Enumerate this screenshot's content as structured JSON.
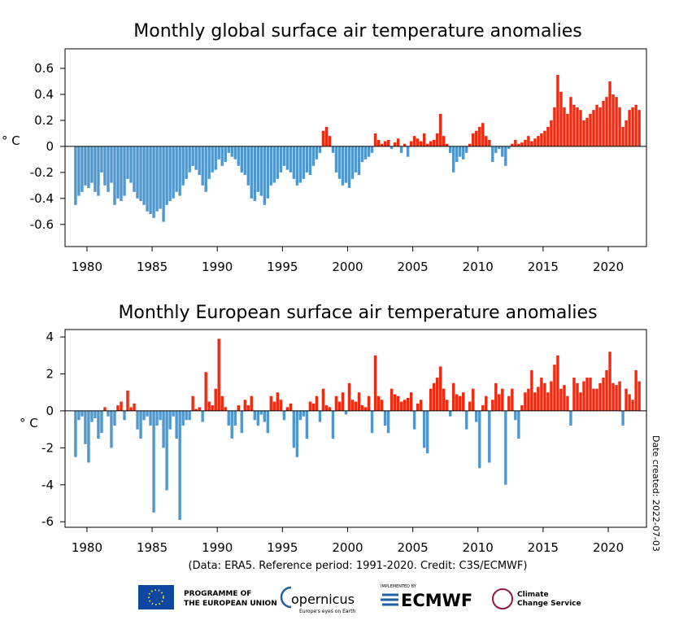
{
  "chart_data": [
    {
      "type": "bar",
      "title": "Monthly global surface air temperature anomalies",
      "ylabel": "° C",
      "positive_color": "#ee2a10",
      "negative_color": "#4f97cc",
      "xlim": [
        1978.32,
        2022.93
      ],
      "xticks": [
        1980,
        1985,
        1990,
        1995,
        2000,
        2005,
        2010,
        2015,
        2020
      ],
      "ylim": [
        -0.77,
        0.75
      ],
      "yticks": [
        0.6,
        0.4,
        0.2,
        0,
        -0.2,
        -0.4,
        -0.6
      ],
      "x": [
        1979.125,
        1979.375,
        1979.625,
        1979.875,
        1980.125,
        1980.375,
        1980.625,
        1980.875,
        1981.125,
        1981.375,
        1981.625,
        1981.875,
        1982.125,
        1982.375,
        1982.625,
        1982.875,
        1983.125,
        1983.375,
        1983.625,
        1983.875,
        1984.125,
        1984.375,
        1984.625,
        1984.875,
        1985.125,
        1985.375,
        1985.625,
        1985.875,
        1986.125,
        1986.375,
        1986.625,
        1986.875,
        1987.125,
        1987.375,
        1987.625,
        1987.875,
        1988.125,
        1988.375,
        1988.625,
        1988.875,
        1989.125,
        1989.375,
        1989.625,
        1989.875,
        1990.125,
        1990.375,
        1990.625,
        1990.875,
        1991.125,
        1991.375,
        1991.625,
        1991.875,
        1992.125,
        1992.375,
        1992.625,
        1992.875,
        1993.125,
        1993.375,
        1993.625,
        1993.875,
        1994.125,
        1994.375,
        1994.625,
        1994.875,
        1995.125,
        1995.375,
        1995.625,
        1995.875,
        1996.125,
        1996.375,
        1996.625,
        1996.875,
        1997.125,
        1997.375,
        1997.625,
        1997.875,
        1998.125,
        1998.375,
        1998.625,
        1998.875,
        1999.125,
        1999.375,
        1999.625,
        1999.875,
        2000.125,
        2000.375,
        2000.625,
        2000.875,
        2001.125,
        2001.375,
        2001.625,
        2001.875,
        2002.125,
        2002.375,
        2002.625,
        2002.875,
        2003.125,
        2003.375,
        2003.625,
        2003.875,
        2004.125,
        2004.375,
        2004.625,
        2004.875,
        2005.125,
        2005.375,
        2005.625,
        2005.875,
        2006.125,
        2006.375,
        2006.625,
        2006.875,
        2007.125,
        2007.375,
        2007.625,
        2007.875,
        2008.125,
        2008.375,
        2008.625,
        2008.875,
        2009.125,
        2009.375,
        2009.625,
        2009.875,
        2010.125,
        2010.375,
        2010.625,
        2010.875,
        2011.125,
        2011.375,
        2011.625,
        2011.875,
        2012.125,
        2012.375,
        2012.625,
        2012.875,
        2013.125,
        2013.375,
        2013.625,
        2013.875,
        2014.125,
        2014.375,
        2014.625,
        2014.875,
        2015.125,
        2015.375,
        2015.625,
        2015.875,
        2016.125,
        2016.375,
        2016.625,
        2016.875,
        2017.125,
        2017.375,
        2017.625,
        2017.875,
        2018.125,
        2018.375,
        2018.625,
        2018.875,
        2019.125,
        2019.375,
        2019.625,
        2019.875,
        2020.125,
        2020.375,
        2020.625,
        2020.875,
        2021.125,
        2021.375,
        2021.625,
        2021.875,
        2022.125,
        2022.375
      ],
      "values": [
        -0.45,
        -0.38,
        -0.35,
        -0.3,
        -0.32,
        -0.28,
        -0.35,
        -0.38,
        -0.2,
        -0.3,
        -0.35,
        -0.28,
        -0.45,
        -0.4,
        -0.42,
        -0.38,
        -0.25,
        -0.28,
        -0.35,
        -0.4,
        -0.42,
        -0.45,
        -0.5,
        -0.52,
        -0.55,
        -0.5,
        -0.48,
        -0.58,
        -0.45,
        -0.42,
        -0.4,
        -0.35,
        -0.38,
        -0.3,
        -0.25,
        -0.2,
        -0.15,
        -0.18,
        -0.22,
        -0.3,
        -0.35,
        -0.25,
        -0.2,
        -0.18,
        -0.1,
        -0.15,
        -0.12,
        -0.05,
        -0.08,
        -0.1,
        -0.15,
        -0.2,
        -0.22,
        -0.3,
        -0.4,
        -0.42,
        -0.35,
        -0.38,
        -0.45,
        -0.4,
        -0.3,
        -0.28,
        -0.25,
        -0.2,
        -0.15,
        -0.18,
        -0.2,
        -0.25,
        -0.3,
        -0.28,
        -0.25,
        -0.2,
        -0.22,
        -0.15,
        -0.1,
        -0.05,
        0.12,
        0.15,
        0.08,
        -0.05,
        -0.2,
        -0.25,
        -0.3,
        -0.28,
        -0.32,
        -0.25,
        -0.2,
        -0.22,
        -0.12,
        -0.1,
        -0.08,
        -0.05,
        0.1,
        0.05,
        0.02,
        0.04,
        0.05,
        -0.02,
        0.03,
        0.06,
        -0.05,
        0.02,
        -0.08,
        0.04,
        0.08,
        0.06,
        0.04,
        0.1,
        0.02,
        0.04,
        0.05,
        0.1,
        0.25,
        0.08,
        0.02,
        -0.05,
        -0.2,
        -0.12,
        -0.08,
        -0.1,
        -0.05,
        0.02,
        0.1,
        0.12,
        0.15,
        0.18,
        0.08,
        0.05,
        -0.12,
        -0.05,
        -0.02,
        -0.08,
        -0.15,
        -0.02,
        0.02,
        0.05,
        0.02,
        0.03,
        0.05,
        0.08,
        0.04,
        0.06,
        0.08,
        0.1,
        0.12,
        0.15,
        0.2,
        0.3,
        0.55,
        0.42,
        0.3,
        0.25,
        0.38,
        0.32,
        0.3,
        0.28,
        0.2,
        0.22,
        0.25,
        0.28,
        0.32,
        0.3,
        0.35,
        0.38,
        0.5,
        0.4,
        0.38,
        0.3,
        0.15,
        0.2,
        0.28,
        0.3,
        0.32,
        0.28
      ]
    },
    {
      "type": "bar",
      "title": "Monthly European surface air temperature anomalies",
      "ylabel": "° C",
      "positive_color": "#ee2a10",
      "negative_color": "#4f97cc",
      "xlim": [
        1978.32,
        2022.93
      ],
      "xticks": [
        1980,
        1985,
        1990,
        1995,
        2000,
        2005,
        2010,
        2015,
        2020
      ],
      "ylim": [
        -6.3,
        4.4
      ],
      "yticks": [
        4,
        2,
        0,
        -2,
        -4,
        -6
      ],
      "x": [
        1979.125,
        1979.375,
        1979.625,
        1979.875,
        1980.125,
        1980.375,
        1980.625,
        1980.875,
        1981.125,
        1981.375,
        1981.625,
        1981.875,
        1982.125,
        1982.375,
        1982.625,
        1982.875,
        1983.125,
        1983.375,
        1983.625,
        1983.875,
        1984.125,
        1984.375,
        1984.625,
        1984.875,
        1985.125,
        1985.375,
        1985.625,
        1985.875,
        1986.125,
        1986.375,
        1986.625,
        1986.875,
        1987.125,
        1987.375,
        1987.625,
        1987.875,
        1988.125,
        1988.375,
        1988.625,
        1988.875,
        1989.125,
        1989.375,
        1989.625,
        1989.875,
        1990.125,
        1990.375,
        1990.625,
        1990.875,
        1991.125,
        1991.375,
        1991.625,
        1991.875,
        1992.125,
        1992.375,
        1992.625,
        1992.875,
        1993.125,
        1993.375,
        1993.625,
        1993.875,
        1994.125,
        1994.375,
        1994.625,
        1994.875,
        1995.125,
        1995.375,
        1995.625,
        1995.875,
        1996.125,
        1996.375,
        1996.625,
        1996.875,
        1997.125,
        1997.375,
        1997.625,
        1997.875,
        1998.125,
        1998.375,
        1998.625,
        1998.875,
        1999.125,
        1999.375,
        1999.625,
        1999.875,
        2000.125,
        2000.375,
        2000.625,
        2000.875,
        2001.125,
        2001.375,
        2001.625,
        2001.875,
        2002.125,
        2002.375,
        2002.625,
        2002.875,
        2003.125,
        2003.375,
        2003.625,
        2003.875,
        2004.125,
        2004.375,
        2004.625,
        2004.875,
        2005.125,
        2005.375,
        2005.625,
        2005.875,
        2006.125,
        2006.375,
        2006.625,
        2006.875,
        2007.125,
        2007.375,
        2007.625,
        2007.875,
        2008.125,
        2008.375,
        2008.625,
        2008.875,
        2009.125,
        2009.375,
        2009.625,
        2009.875,
        2010.125,
        2010.375,
        2010.625,
        2010.875,
        2011.125,
        2011.375,
        2011.625,
        2011.875,
        2012.125,
        2012.375,
        2012.625,
        2012.875,
        2013.125,
        2013.375,
        2013.625,
        2013.875,
        2014.125,
        2014.375,
        2014.625,
        2014.875,
        2015.125,
        2015.375,
        2015.625,
        2015.875,
        2016.125,
        2016.375,
        2016.625,
        2016.875,
        2017.125,
        2017.375,
        2017.625,
        2017.875,
        2018.125,
        2018.375,
        2018.625,
        2018.875,
        2019.125,
        2019.375,
        2019.625,
        2019.875,
        2020.125,
        2020.375,
        2020.625,
        2020.875,
        2021.125,
        2021.375,
        2021.625,
        2021.875,
        2022.125,
        2022.375
      ],
      "values": [
        -2.5,
        -0.5,
        -0.3,
        -1.8,
        -2.8,
        -0.6,
        -0.4,
        -1.5,
        -1.2,
        0.2,
        -0.3,
        -2,
        -0.8,
        0.3,
        0.5,
        -0.5,
        1.1,
        0.2,
        0.4,
        -1,
        -1.5,
        -0.5,
        -0.3,
        -0.8,
        -5.5,
        -0.8,
        -0.5,
        -2,
        -4.3,
        -1,
        -0.3,
        -1.5,
        -5.9,
        -0.8,
        -0.5,
        -0.5,
        0.8,
        0.1,
        0.2,
        -0.6,
        2.1,
        0.5,
        0.3,
        1.2,
        3.9,
        0.8,
        0.2,
        -0.8,
        -1.5,
        -0.8,
        0.3,
        -1.2,
        0.6,
        0.3,
        0.8,
        -0.5,
        -0.8,
        -0.2,
        -0.6,
        -1.2,
        0.8,
        0.5,
        1,
        0.6,
        -0.5,
        0.2,
        0.4,
        -2,
        -2.5,
        -0.5,
        -0.3,
        -1.5,
        0.5,
        0.4,
        0.8,
        -0.6,
        1.2,
        0.3,
        0.2,
        -1.5,
        0.8,
        0.5,
        1,
        -0.2,
        1.5,
        0.6,
        0.5,
        1,
        0.3,
        0.2,
        0.8,
        -1.2,
        3,
        0.8,
        0.6,
        -0.8,
        -1.2,
        1.2,
        0.9,
        0.8,
        0.5,
        0.6,
        0.7,
        1,
        -1,
        0.4,
        0.6,
        -2,
        -2.3,
        1.2,
        1.5,
        1.8,
        2.4,
        1.2,
        0.6,
        -0.3,
        1.5,
        0.9,
        0.8,
        1,
        -1,
        0.5,
        1.2,
        -0.6,
        -3.1,
        0.3,
        0.8,
        -2.8,
        0.6,
        1.5,
        0.9,
        1.2,
        -4,
        0.8,
        1.2,
        -0.5,
        -1.5,
        0.3,
        1,
        1.2,
        2.2,
        1,
        1.3,
        1.8,
        1.5,
        1,
        1.6,
        2.5,
        3,
        1.2,
        1.4,
        0.8,
        -0.8,
        1.8,
        1.5,
        1,
        1.6,
        1.8,
        1.8,
        1.2,
        1.2,
        1.5,
        1.8,
        2.2,
        3.2,
        1.5,
        1.4,
        1.6,
        -0.8,
        1.2,
        0.9,
        0.6,
        2.2,
        1.6
      ]
    }
  ],
  "credit": "(Data: ERA5.  Reference period: 1991-2020.  Credit: C3S/ECMWF)",
  "date_created": "Date created: 2022-07-03",
  "logos": {
    "eu_line1": "PROGRAMME OF",
    "eu_line2": "THE EUROPEAN UNION",
    "copernicus": "opernicus",
    "copernicus_tag": "Europe's eyes on Earth",
    "implemented": "IMPLEMENTED BY",
    "ecmwf": "ECMWF",
    "c3s_line1": "Climate",
    "c3s_line2": "Change Service"
  }
}
